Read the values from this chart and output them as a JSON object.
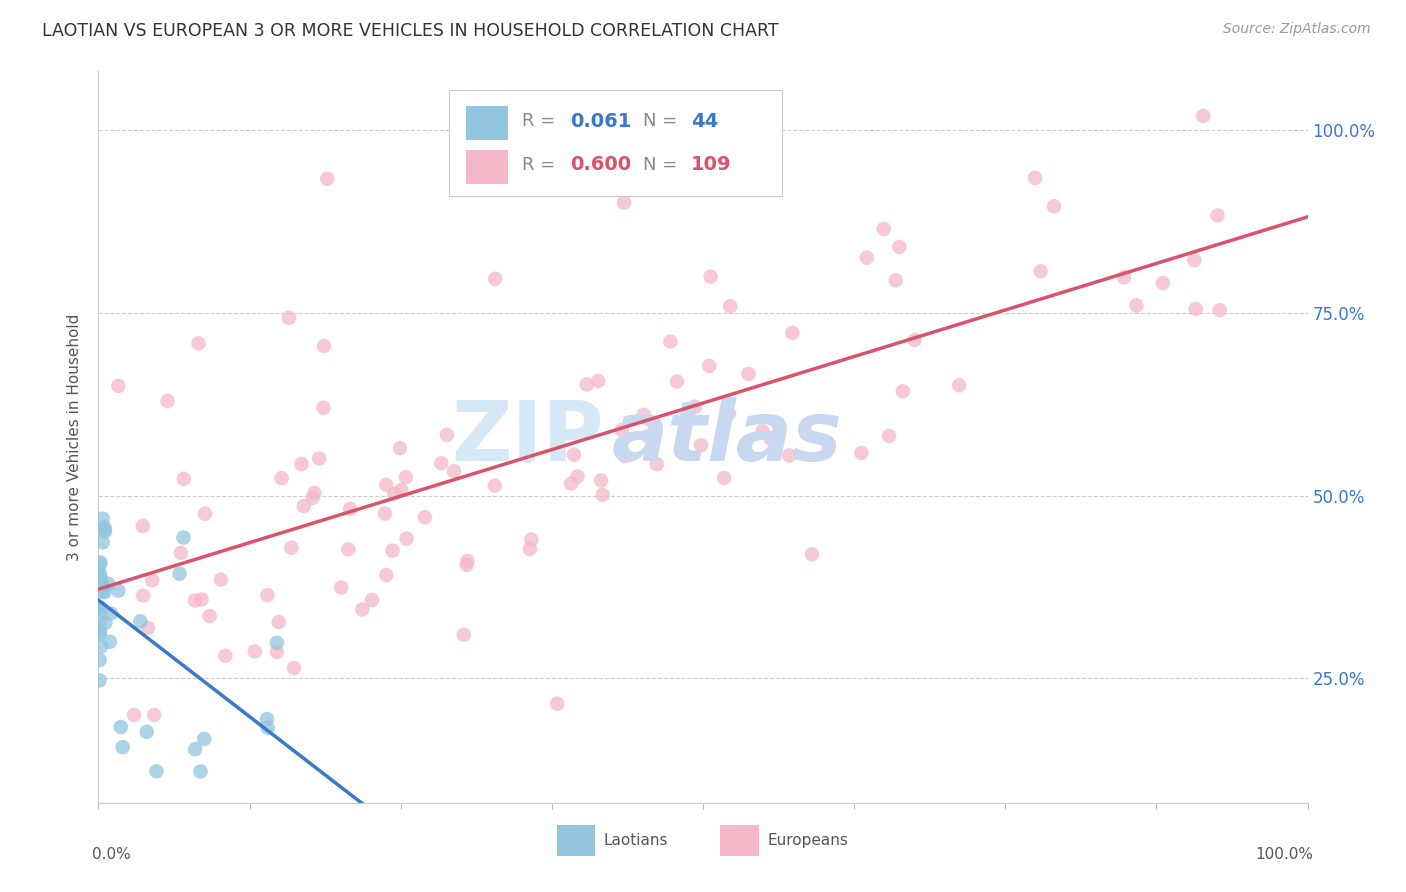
{
  "title": "LAOTIAN VS EUROPEAN 3 OR MORE VEHICLES IN HOUSEHOLD CORRELATION CHART",
  "source": "Source: ZipAtlas.com",
  "ylabel": "3 or more Vehicles in Household",
  "laotian_R": 0.061,
  "laotian_N": 44,
  "european_R": 0.6,
  "european_N": 109,
  "laotian_color": "#92c5de",
  "european_color": "#f4b8c8",
  "laotian_line_color": "#3a78c9",
  "european_line_color": "#d9536a",
  "background_color": "#ffffff",
  "legend_blue_text": "#3a78c9",
  "legend_pink_text": "#d9536a",
  "right_axis_color": "#3a78c9",
  "grid_color": "#cccccc",
  "watermark_zip_color": "#d5e8f5",
  "watermark_atlas_color": "#c8d8f0"
}
